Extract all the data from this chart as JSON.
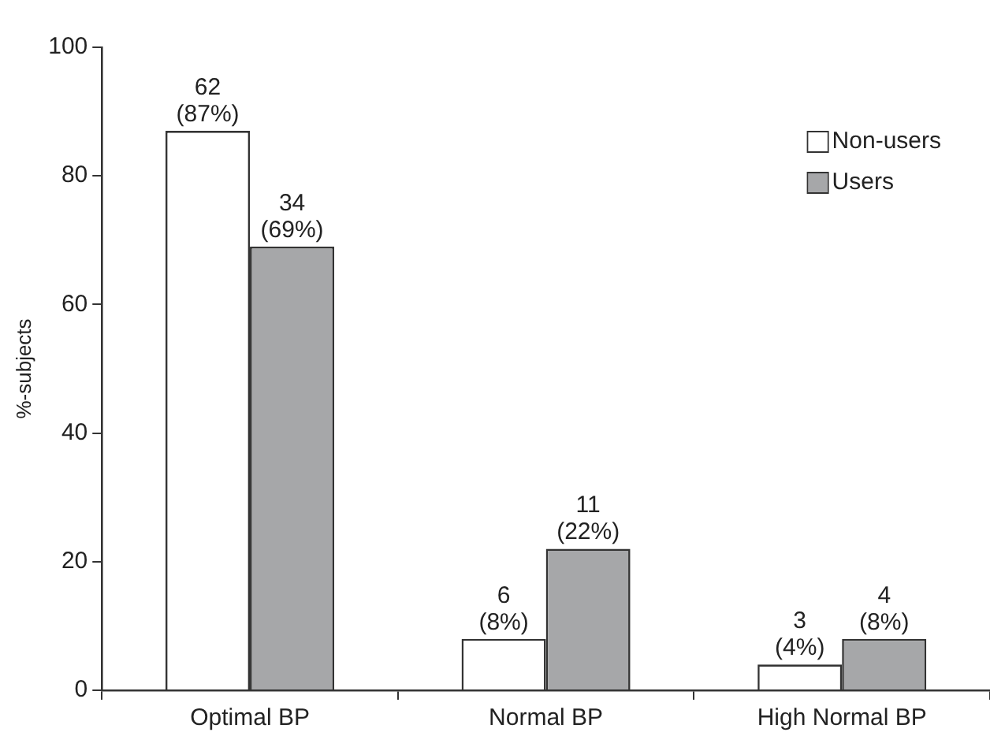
{
  "chart_data": {
    "type": "bar",
    "ylabel": "%-subjects",
    "categories": [
      "Optimal BP",
      "Normal BP",
      "High Normal BP"
    ],
    "series": [
      {
        "name": "Non-users",
        "color": "#ffffff",
        "values": [
          87,
          8,
          4
        ],
        "value_labels": [
          "62 (87%)",
          "6 (8%)",
          "3 (4%)"
        ]
      },
      {
        "name": "Users",
        "color": "#a6a7a9",
        "values": [
          69,
          22,
          8
        ],
        "value_labels": [
          "34 (69%)",
          "11 (22%)",
          "4 (8%)"
        ]
      }
    ],
    "ylim": [
      0,
      100
    ],
    "yticks": [
      0,
      20,
      40,
      60,
      80,
      100
    ],
    "grid": false,
    "legend": "top right"
  }
}
